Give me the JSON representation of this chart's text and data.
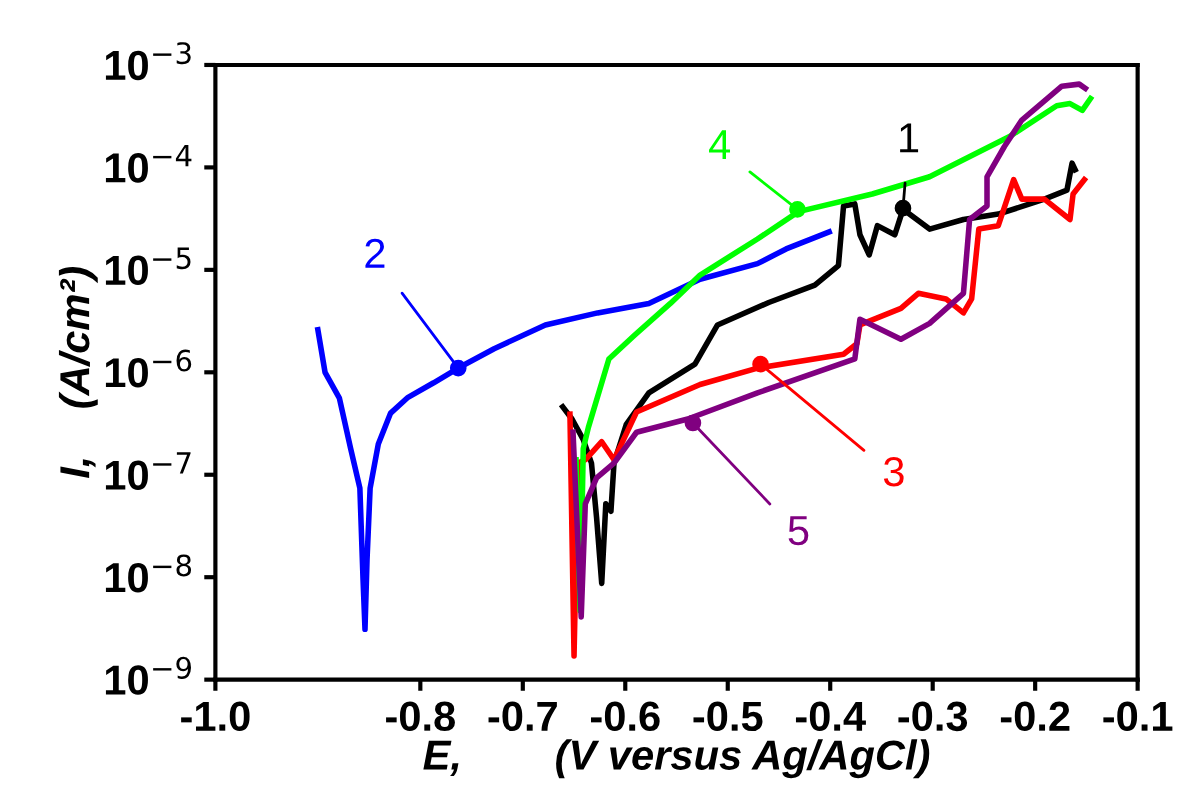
{
  "chart_data": {
    "type": "line",
    "xlabel": "E,        (V versus Ag/AgCl)",
    "ylabel": "I,    (A/cm²)",
    "log": "y",
    "grid": false,
    "legend": false,
    "marker": "none",
    "line_style": "solid",
    "xlim": [
      -1.0,
      -0.1
    ],
    "ylim": [
      1e-09,
      0.001
    ],
    "xticks": [
      {
        "value": -1.0,
        "label": "-1.0"
      },
      -0.8,
      -0.7,
      -0.6,
      -0.5,
      -0.4,
      -0.3,
      -0.2,
      -0.1
    ],
    "yticks": [
      {
        "value": 1e-09,
        "label": "10$^{−9}$"
      },
      {
        "value": 1e-08,
        "label": "10$^{−8}$"
      },
      {
        "value": 1e-07,
        "label": "10$^{−7}$"
      },
      {
        "value": 1e-06,
        "label": "10$^{−6}$"
      },
      {
        "value": 1e-05,
        "label": "10$^{−5}$"
      },
      {
        "value": 0.0001,
        "label": "10$^{−4}$"
      },
      {
        "value": 0.001,
        "label": "10$^{−3}$"
      }
    ],
    "series": [
      {
        "color": "#000000",
        "x": [
          -0.661,
          -0.652,
          -0.641,
          -0.633,
          -0.628,
          -0.623,
          -0.619,
          -0.614,
          -0.611,
          -0.599,
          -0.577,
          -0.532,
          -0.51,
          -0.46,
          -0.415,
          -0.392,
          -0.387,
          -0.376,
          -0.371,
          -0.362,
          -0.354,
          -0.337,
          -0.329,
          -0.303,
          -0.27,
          -0.236,
          -0.191,
          -0.169,
          -0.164,
          -0.161
        ],
        "values": [
          4.6e-07,
          3.5e-07,
          2.2e-07,
          1.3e-07,
          3.8e-08,
          8.7e-09,
          5.2e-08,
          4.4e-08,
          1.3e-07,
          3.1e-07,
          6.3e-07,
          1.2e-06,
          2.9e-06,
          4.8e-06,
          7.1e-06,
          1.1e-05,
          4.2e-05,
          4.4e-05,
          2.2e-05,
          1.4e-05,
          2.7e-05,
          2.2e-05,
          3.9e-05,
          2.5e-05,
          3.1e-05,
          3.5e-05,
          4.9e-05,
          6e-05,
          0.00011,
          9.5e-05
        ]
      },
      {
        "color": "#0000ff",
        "x": [
          -0.9,
          -0.893,
          -0.879,
          -0.868,
          -0.859,
          -0.856,
          -0.854,
          -0.852,
          -0.849,
          -0.841,
          -0.829,
          -0.812,
          -0.787,
          -0.763,
          -0.728,
          -0.678,
          -0.627,
          -0.577,
          -0.527,
          -0.471,
          -0.443,
          -0.401
        ],
        "values": [
          2.6e-06,
          1e-06,
          5.6e-07,
          1.8e-07,
          7.4e-08,
          1e-08,
          3.1e-09,
          1.5e-08,
          7.4e-08,
          2e-07,
          4e-07,
          5.7e-07,
          7.9e-07,
          1.1e-06,
          1.7e-06,
          2.9e-06,
          3.8e-06,
          4.7e-06,
          8.1e-06,
          1.15e-05,
          1.6e-05,
          2.35e-05
        ]
      },
      {
        "color": "#ff0000",
        "x": [
          -0.654,
          -0.65,
          -0.646,
          -0.639,
          -0.623,
          -0.611,
          -0.589,
          -0.527,
          -0.471,
          -0.387,
          -0.374,
          -0.371,
          -0.331,
          -0.314,
          -0.287,
          -0.27,
          -0.262,
          -0.255,
          -0.236,
          -0.221,
          -0.213,
          -0.191,
          -0.166,
          -0.163,
          -0.152
        ],
        "values": [
          3.9e-07,
          1.7e-09,
          1.3e-07,
          1.4e-07,
          2.1e-07,
          1.4e-07,
          4.1e-07,
          7.6e-07,
          1.1e-06,
          1.5e-06,
          1.9e-06,
          2.9e-06,
          4.2e-06,
          5.9e-06,
          5.2e-06,
          3.8e-06,
          5.2e-06,
          2.5e-05,
          2.7e-05,
          7.6e-05,
          4.9e-05,
          4.9e-05,
          3.1e-05,
          5.5e-05,
          7.6e-05
        ]
      },
      {
        "color": "#00ff00",
        "x": [
          -0.648,
          -0.644,
          -0.641,
          -0.636,
          -0.616,
          -0.591,
          -0.556,
          -0.527,
          -0.471,
          -0.431,
          -0.359,
          -0.303,
          -0.225,
          -0.179,
          -0.166,
          -0.154,
          -0.146
        ],
        "values": [
          1.4e-07,
          4.7e-09,
          1.8e-07,
          2.9e-07,
          1.35e-06,
          2.3e-06,
          4.7e-06,
          8.9e-06,
          2e-05,
          3.7e-05,
          5.5e-05,
          8.1e-05,
          0.0002,
          0.0004,
          0.00042,
          0.00036,
          0.00047
        ]
      },
      {
        "color": "#800080",
        "x": [
          -0.651,
          -0.643,
          -0.639,
          -0.628,
          -0.611,
          -0.589,
          -0.539,
          -0.471,
          -0.376,
          -0.371,
          -0.331,
          -0.303,
          -0.27,
          -0.264,
          -0.247,
          -0.247,
          -0.23,
          -0.213,
          -0.174,
          -0.157,
          -0.151
        ],
        "values": [
          2.6e-07,
          4.1e-09,
          5.2e-08,
          9.3e-08,
          1.3e-07,
          2.6e-07,
          3.5e-07,
          6.3e-07,
          1.35e-06,
          3.3e-06,
          2.1e-06,
          3e-06,
          5.9e-06,
          3.1e-05,
          4.2e-05,
          8.1e-05,
          0.00016,
          0.00029,
          0.00062,
          0.00065,
          0.00059
        ]
      }
    ],
    "annotations": [
      {
        "text": "1",
        "x": -0.329,
        "y": 4e-05
      },
      {
        "text": "2",
        "x": -0.763,
        "y": 1.1e-06
      },
      {
        "text": "3",
        "x": -0.468,
        "y": 1.2e-06
      },
      {
        "text": "4",
        "x": -0.432,
        "y": 3.9e-05
      },
      {
        "text": "5",
        "x": -0.534,
        "y": 3.2e-07
      }
    ]
  }
}
